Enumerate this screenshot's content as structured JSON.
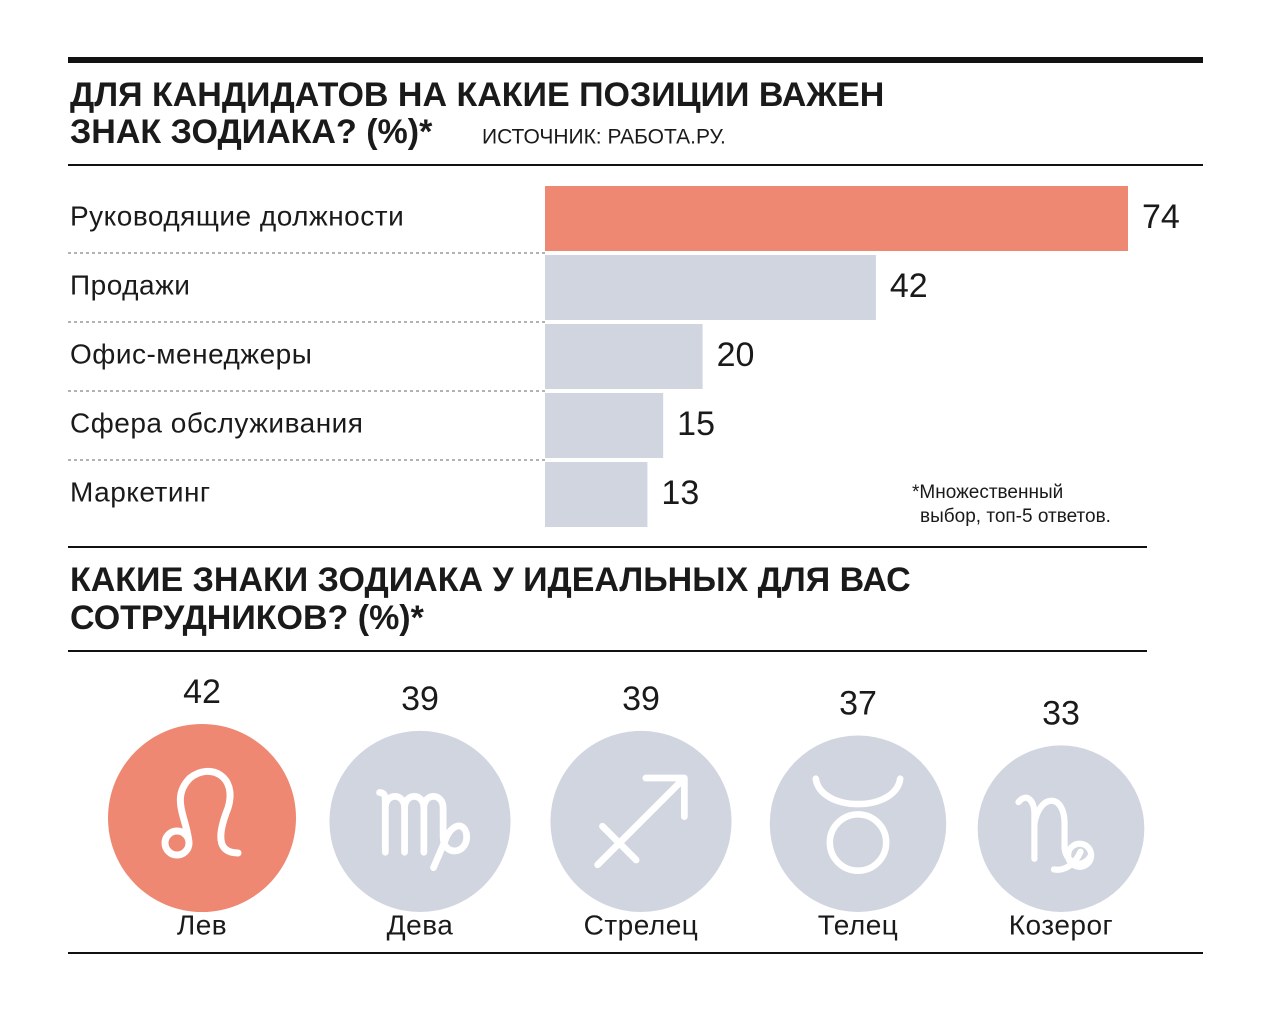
{
  "chart_data": [
    {
      "type": "bar",
      "title_lines": [
        "ДЛЯ КАНДИДАТОВ НА КАКИЕ ПОЗИЦИИ ВАЖЕН",
        "ЗНАК ЗОДИАКА? (%)*"
      ],
      "source": "ИСТОЧНИК: РАБОТА.РУ.",
      "categories": [
        "Руководящие должности",
        "Продажи",
        "Офис-менеджеры",
        "Сфера обслуживания",
        "Маркетинг"
      ],
      "values": [
        74,
        42,
        20,
        15,
        13
      ],
      "colors": [
        "#ef8872",
        "#d0d5df",
        "#d0d5df",
        "#d0d5df",
        "#d0d5df"
      ],
      "footnote_lines": [
        "*Множественный",
        "выбор, топ-5 ответов."
      ]
    },
    {
      "type": "bubble",
      "title_lines": [
        "КАКИЕ ЗНАКИ ЗОДИАКА У ИДЕАЛЬНЫХ ДЛЯ ВАС",
        "СОТРУДНИКОВ? (%)*"
      ],
      "categories": [
        "Лев",
        "Дева",
        "Стрелец",
        "Телец",
        "Козерог"
      ],
      "values": [
        42,
        39,
        39,
        37,
        33
      ],
      "colors": [
        "#ef8872",
        "#d0d5df",
        "#d0d5df",
        "#d0d5df",
        "#d0d5df"
      ]
    }
  ]
}
